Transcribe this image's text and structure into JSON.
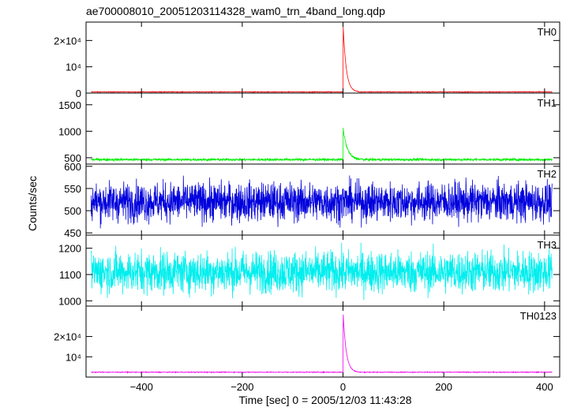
{
  "title": "ae700008010_20051203114328_wam0_trn_4band_long.qdp",
  "ylabel": "Counts/sec",
  "xlabel": "Time [sec] 0 = 2005/12/03 11:43:28",
  "chart_data": {
    "type": "line",
    "title": "ae700008010_20051203114328_wam0_trn_4band_long.qdp",
    "xlabel": "Time [sec] 0 = 2005/12/03 11:43:28",
    "ylabel": "Counts/sec",
    "xlim": [
      -510,
      430
    ],
    "x_ticks": [
      -400,
      -200,
      0,
      200,
      400
    ],
    "x_tick_labels": [
      "−400",
      "−200",
      "0",
      "200",
      "400"
    ],
    "grid": false,
    "panels": [
      {
        "name": "TH0",
        "color": "#ff0000",
        "ylim": [
          0,
          27000
        ],
        "y_ticks": [
          0,
          10000,
          20000
        ],
        "y_tick_labels": [
          "0",
          "10⁴",
          "2×10⁴"
        ],
        "x_range": [
          -500,
          415
        ],
        "baseline": 450,
        "noise": 60,
        "burst_peak": 27000,
        "burst_start": 0,
        "burst_decay": 6,
        "burst_end": 30
      },
      {
        "name": "TH1",
        "color": "#00ee00",
        "ylim": [
          380,
          1720
        ],
        "y_ticks": [
          500,
          1000,
          1500
        ],
        "y_tick_labels": [
          "500",
          "1000",
          "1500"
        ],
        "x_range": [
          -500,
          415
        ],
        "baseline": 465,
        "noise": 12,
        "burst_peak": 1080,
        "burst_start": 0,
        "burst_decay": 8,
        "burst_end": 40
      },
      {
        "name": "TH2",
        "color": "#0000dd",
        "ylim": [
          445,
          605
        ],
        "y_ticks": [
          450,
          500,
          550,
          600
        ],
        "y_tick_labels": [
          "450",
          "500",
          "550",
          "600"
        ],
        "x_range": [
          -500,
          415
        ],
        "baseline": 520,
        "noise": 22,
        "burst_peak": 0,
        "burst_start": 0,
        "burst_decay": 1,
        "burst_end": 0
      },
      {
        "name": "TH3",
        "color": "#00eeee",
        "ylim": [
          980,
          1250
        ],
        "y_ticks": [
          1000,
          1100,
          1200
        ],
        "y_tick_labels": [
          "1000",
          "1100",
          "1200"
        ],
        "x_range": [
          -500,
          415
        ],
        "baseline": 1110,
        "noise": 40,
        "burst_peak": 0,
        "burst_start": 0,
        "burst_decay": 1,
        "burst_end": 0
      },
      {
        "name": "TH0123",
        "color": "#ee00ee",
        "ylim": [
          0,
          35000
        ],
        "y_ticks": [
          10000,
          20000
        ],
        "y_tick_labels": [
          "10⁴",
          "2×10⁴"
        ],
        "x_range": [
          -500,
          415
        ],
        "baseline": 2400,
        "noise": 90,
        "burst_peak": 33000,
        "burst_start": 0,
        "burst_decay": 6,
        "burst_end": 30
      }
    ]
  }
}
